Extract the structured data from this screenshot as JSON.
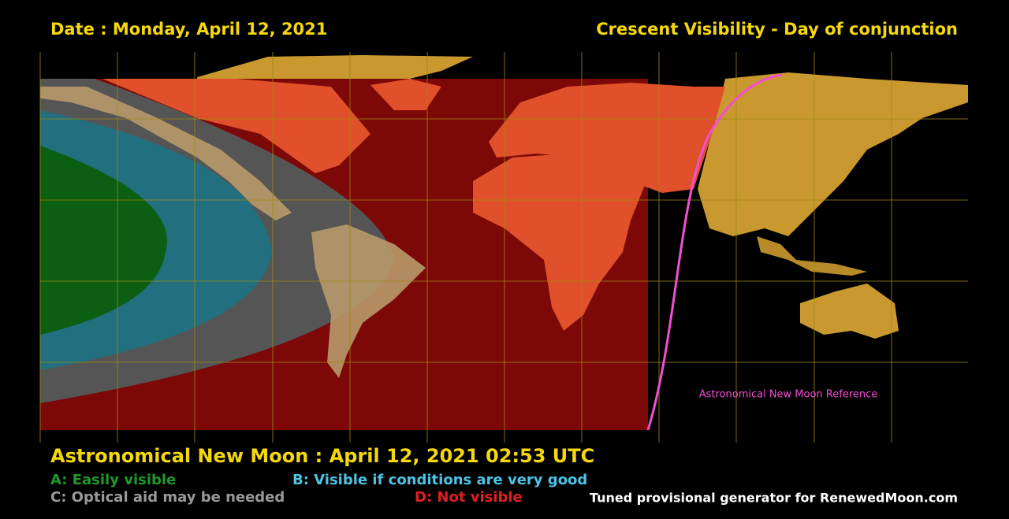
{
  "header": {
    "date": "Date : Monday, April 12, 2021",
    "title": "Crescent Visibility - Day of conjunction"
  },
  "map": {
    "annotation": "Astronomical New Moon Reference"
  },
  "footer": {
    "new_moon": "Astronomical New Moon : April 12, 2021 02:53 UTC",
    "legend": [
      {
        "text": "A: Easily visible"
      },
      {
        "text": "B: Visible if conditions are very good"
      },
      {
        "text": "C: Optical aid may be needed"
      },
      {
        "text": "D: Not visible"
      }
    ],
    "credit": "Tuned provisional generator for RenewedMoon.com"
  }
}
